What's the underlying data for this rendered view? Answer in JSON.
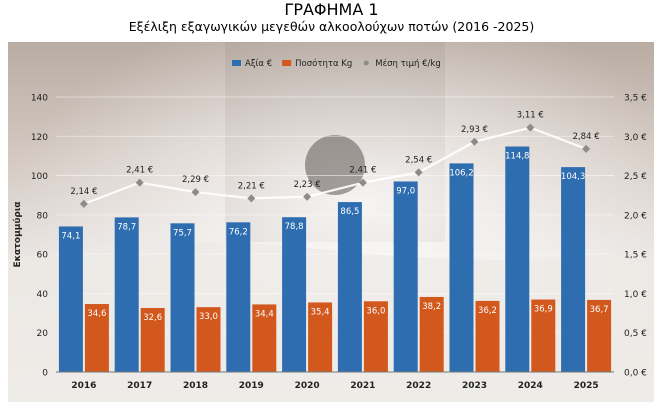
{
  "chart_data": {
    "type": "bar",
    "title": "ΓΡΑΦΗΜΑ 1",
    "subtitle": "Εξέλιξη  εξαγωγικών μεγεθών αλκοολούχων ποτών (2016 -2025)",
    "ylabel": "Εκατομμύρια",
    "categories": [
      "2016",
      "2017",
      "2018",
      "2019",
      "2020",
      "2021",
      "2022",
      "2023",
      "2024",
      "2025"
    ],
    "ylim": [
      0,
      140
    ],
    "y_ticks": [
      "0",
      "20",
      "40",
      "60",
      "80",
      "100",
      "120",
      "140"
    ],
    "y2lim": [
      0,
      3.5
    ],
    "y2_ticks": [
      "0,0 €",
      "0,5 €",
      "1,0 €",
      "1,5 €",
      "2,0 €",
      "2,5 €",
      "3,0 €",
      "3,5 €"
    ],
    "legend_position": "top-center",
    "series": [
      {
        "name": "Αξία €",
        "kind": "bar",
        "axis": "left",
        "color": "#2e6db0",
        "values": [
          74.1,
          78.7,
          75.7,
          76.2,
          78.8,
          86.5,
          97.0,
          106.2,
          114.8,
          104.3
        ],
        "labels": [
          "74,1",
          "78,7",
          "75,7",
          "76,2",
          "78,8",
          "86,5",
          "97,0",
          "106,2",
          "114,8",
          "104,3"
        ]
      },
      {
        "name": "Ποσότητα Kg",
        "kind": "bar",
        "axis": "left",
        "color": "#d2581d",
        "values": [
          34.6,
          32.6,
          33.0,
          34.4,
          35.4,
          36.0,
          38.2,
          36.2,
          36.9,
          36.7
        ],
        "labels": [
          "34,6",
          "32,6",
          "33,0",
          "34,4",
          "35,4",
          "36,0",
          "38,2",
          "36,2",
          "36,9",
          "36,7"
        ]
      },
      {
        "name": "Μέση τιμή €/kg",
        "kind": "line",
        "axis": "right",
        "color": "#8c8c8c",
        "values": [
          2.14,
          2.41,
          2.29,
          2.21,
          2.23,
          2.41,
          2.54,
          2.93,
          3.11,
          2.84
        ],
        "labels": [
          "2,14 €",
          "2,41 €",
          "2,29 €",
          "2,21 €",
          "2,23 €",
          "2,41 €",
          "2,54 €",
          "2,93 €",
          "3,11 €",
          "2,84 €"
        ]
      }
    ]
  }
}
